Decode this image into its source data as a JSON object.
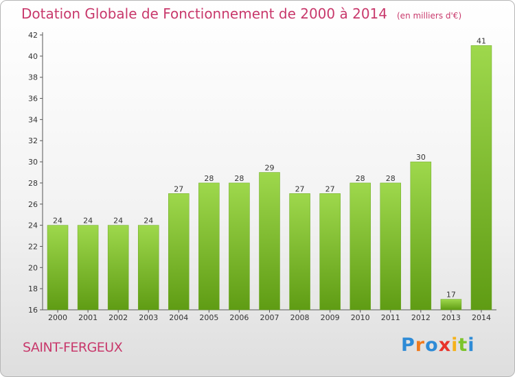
{
  "header": {
    "title": "Dotation Globale de Fonctionnement de 2000 à 2014",
    "unit": "(en milliers d'€)"
  },
  "footer": {
    "location": "SAINT-FERGEUX",
    "brand": "Proxiti"
  },
  "colors": {
    "title": "#c8386b",
    "bar_top": "#9ed84c",
    "bar_bottom": "#5f9c14",
    "logo": [
      "#2e8bd6",
      "#f07a1d",
      "#2e8bd6",
      "#e8332a",
      "#f5b21a",
      "#7cc42a",
      "#2e8bd6"
    ]
  },
  "chart_data": {
    "type": "bar",
    "title": "Dotation Globale de Fonctionnement de 2000 à 2014",
    "subtitle": "(en milliers d'€)",
    "xlabel": "",
    "ylabel": "",
    "categories": [
      "2000",
      "2001",
      "2002",
      "2003",
      "2004",
      "2005",
      "2006",
      "2007",
      "2008",
      "2009",
      "2010",
      "2011",
      "2012",
      "2013",
      "2014"
    ],
    "values": [
      24,
      24,
      24,
      24,
      27,
      28,
      28,
      29,
      27,
      27,
      28,
      28,
      30,
      17,
      41
    ],
    "ylim": [
      16,
      42
    ],
    "yticks": [
      16,
      18,
      20,
      22,
      24,
      26,
      28,
      30,
      32,
      34,
      36,
      38,
      40,
      42
    ],
    "grid": false
  }
}
